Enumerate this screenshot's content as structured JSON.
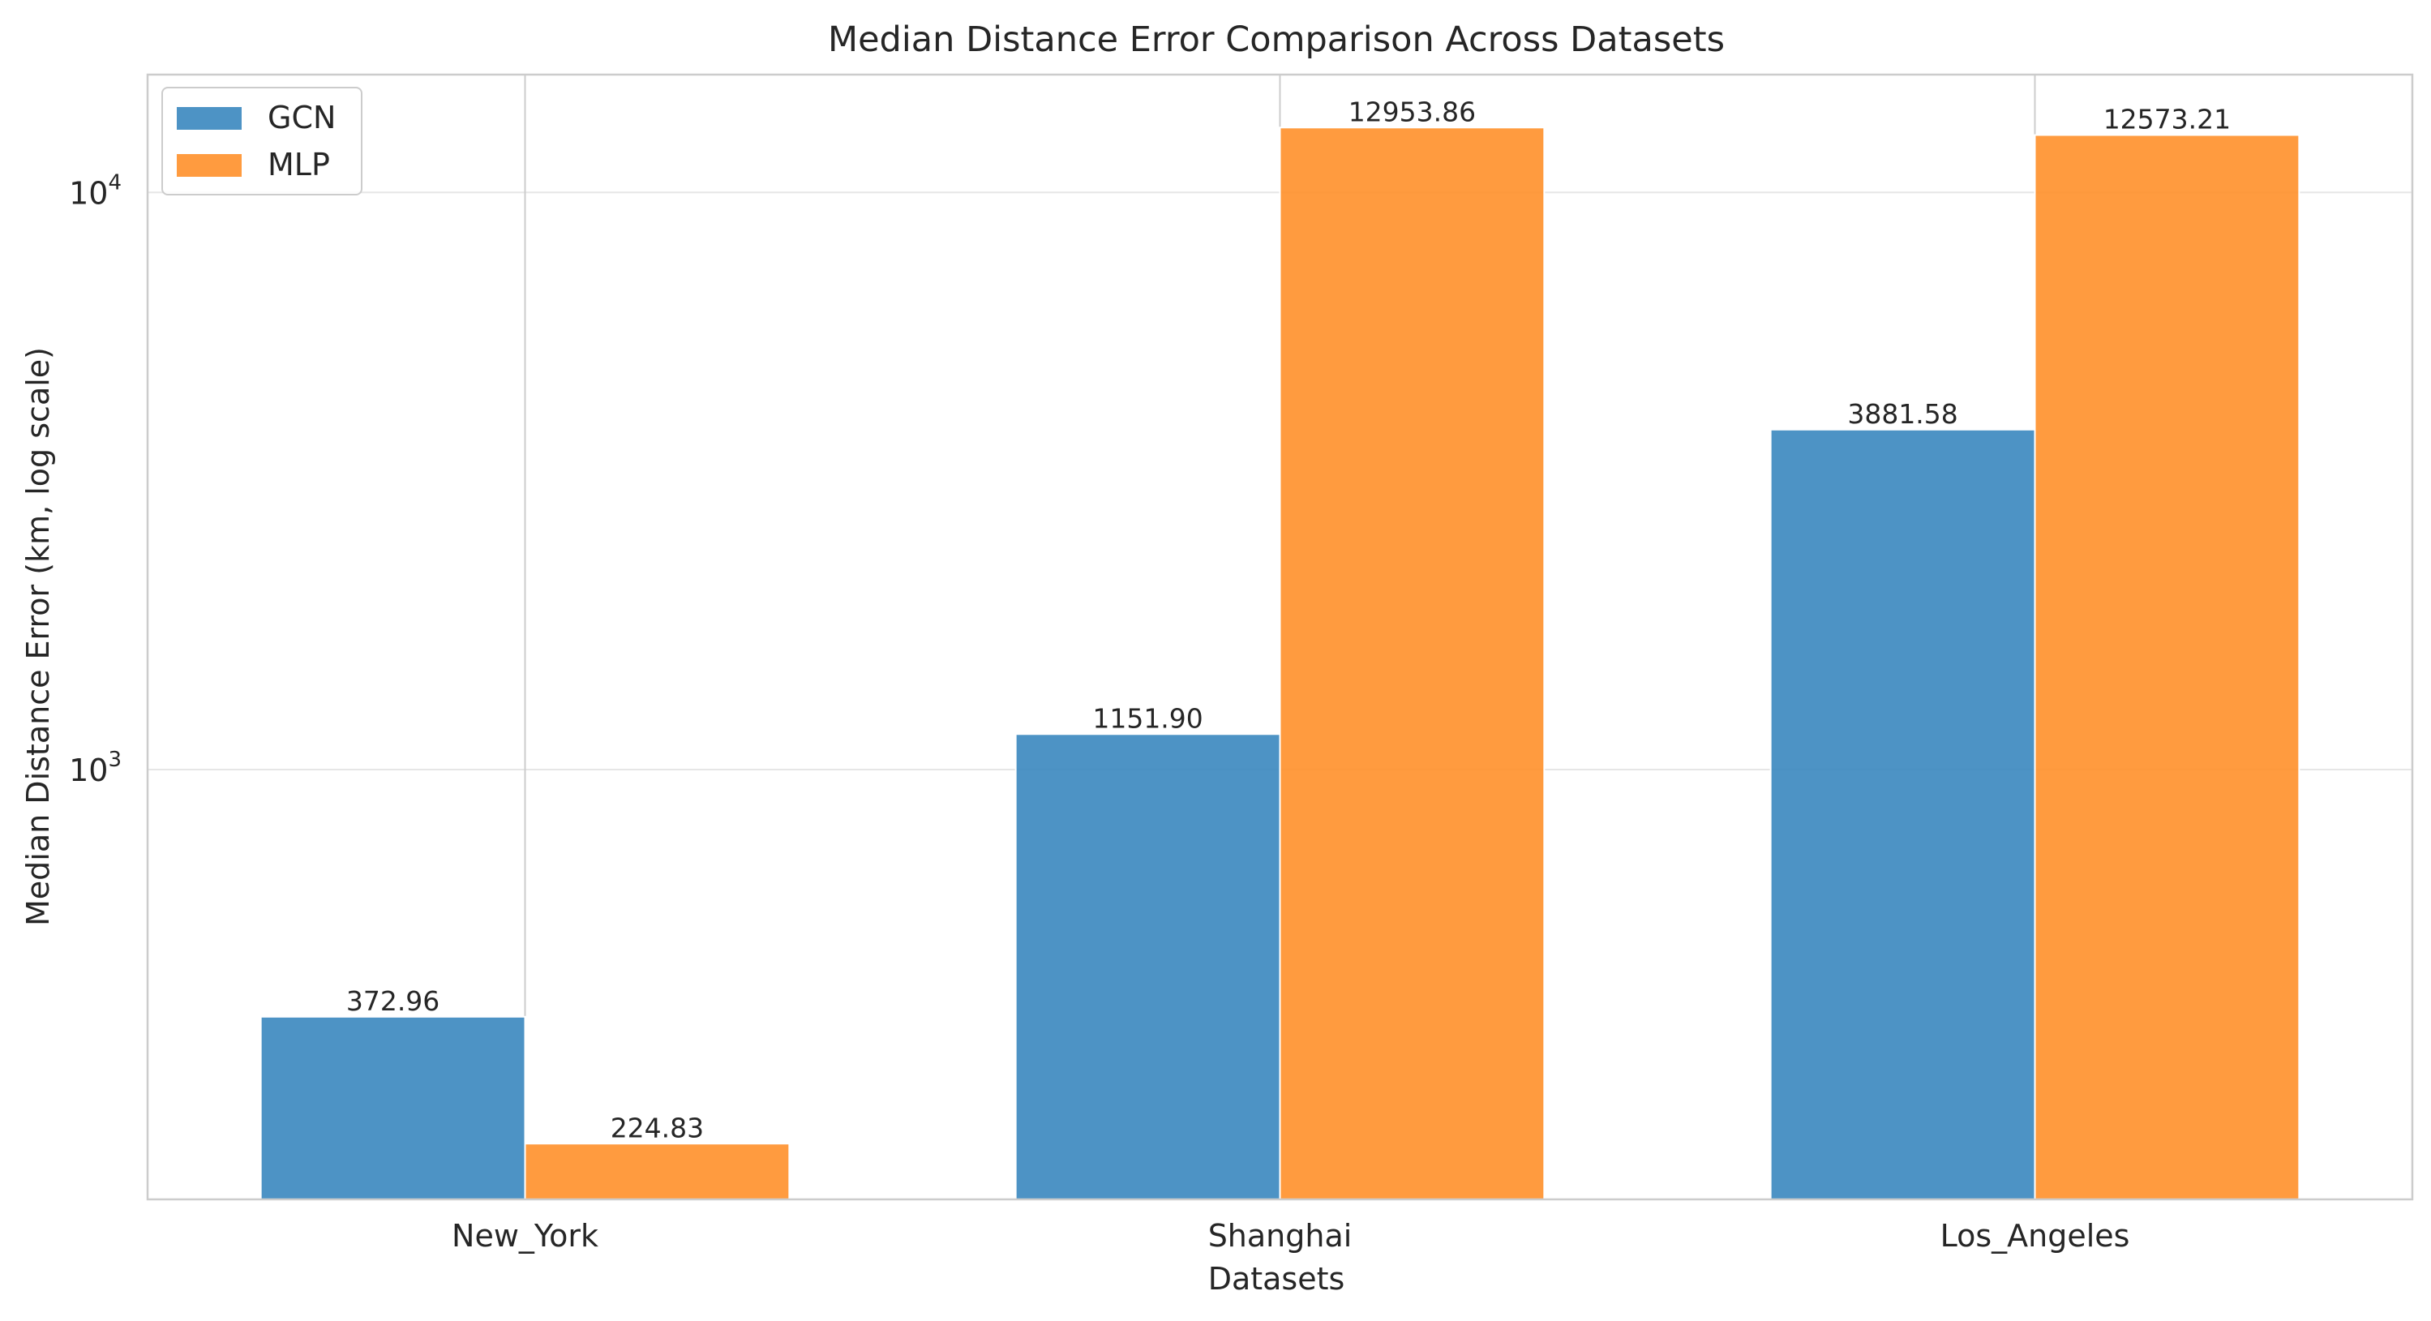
{
  "chart_data": {
    "type": "bar",
    "title": "Median Distance Error Comparison Across Datasets",
    "xlabel": "Datasets",
    "ylabel": "Median Distance Error (km, log scale)",
    "y_scale": "log",
    "ylim": [
      180,
      16000
    ],
    "y_ticks": [
      {
        "value": 1000,
        "base": "10",
        "exp": "3"
      },
      {
        "value": 10000,
        "base": "10",
        "exp": "4"
      }
    ],
    "categories": [
      "New_York",
      "Shanghai",
      "Los_Angeles"
    ],
    "series": [
      {
        "name": "GCN",
        "color": "#3a87bf",
        "values": [
          372.96,
          1151.9,
          3881.58
        ],
        "labels": [
          "372.96",
          "1151.90",
          "3881.58"
        ]
      },
      {
        "name": "MLP",
        "color": "#ff902a",
        "values": [
          224.83,
          12953.86,
          12573.21
        ],
        "labels": [
          "224.83",
          "12953.86",
          "12573.21"
        ]
      }
    ],
    "grid": true,
    "legend_position": "top-left"
  }
}
